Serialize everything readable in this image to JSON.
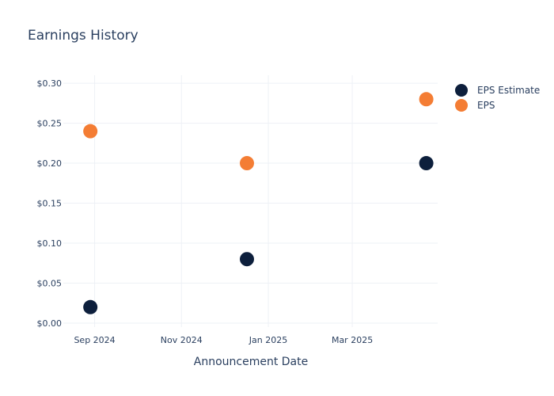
{
  "chart_data": {
    "type": "scatter",
    "title": "Earnings History",
    "xlabel": "Announcement Date",
    "ylabel": "",
    "x_ticks": [
      {
        "date": "2024-09-01",
        "label": "Sep 2024"
      },
      {
        "date": "2024-11-01",
        "label": "Nov 2024"
      },
      {
        "date": "2025-01-01",
        "label": "Jan 2025"
      },
      {
        "date": "2025-03-01",
        "label": "Mar 2025"
      }
    ],
    "y_ticks": [
      0,
      0.05,
      0.1,
      0.15,
      0.2,
      0.25,
      0.3
    ],
    "y_tick_labels": [
      "$0.00",
      "$0.05",
      "$0.10",
      "$0.15",
      "$0.20",
      "$0.25",
      "$0.30"
    ],
    "xlim": [
      "2024-08-10",
      "2025-04-30"
    ],
    "ylim": [
      -0.005,
      0.31
    ],
    "grid": true,
    "legend_position": "top-right",
    "series": [
      {
        "name": "EPS Estimate",
        "color": "#0d1f3c",
        "points": [
          {
            "x": "2024-08-29",
            "y": 0.02
          },
          {
            "x": "2024-12-17",
            "y": 0.08
          },
          {
            "x": "2025-04-22",
            "y": 0.2
          }
        ]
      },
      {
        "name": "EPS",
        "color": "#f47d34",
        "points": [
          {
            "x": "2024-08-29",
            "y": 0.24
          },
          {
            "x": "2024-12-17",
            "y": 0.2
          },
          {
            "x": "2025-04-22",
            "y": 0.28
          }
        ]
      }
    ]
  }
}
